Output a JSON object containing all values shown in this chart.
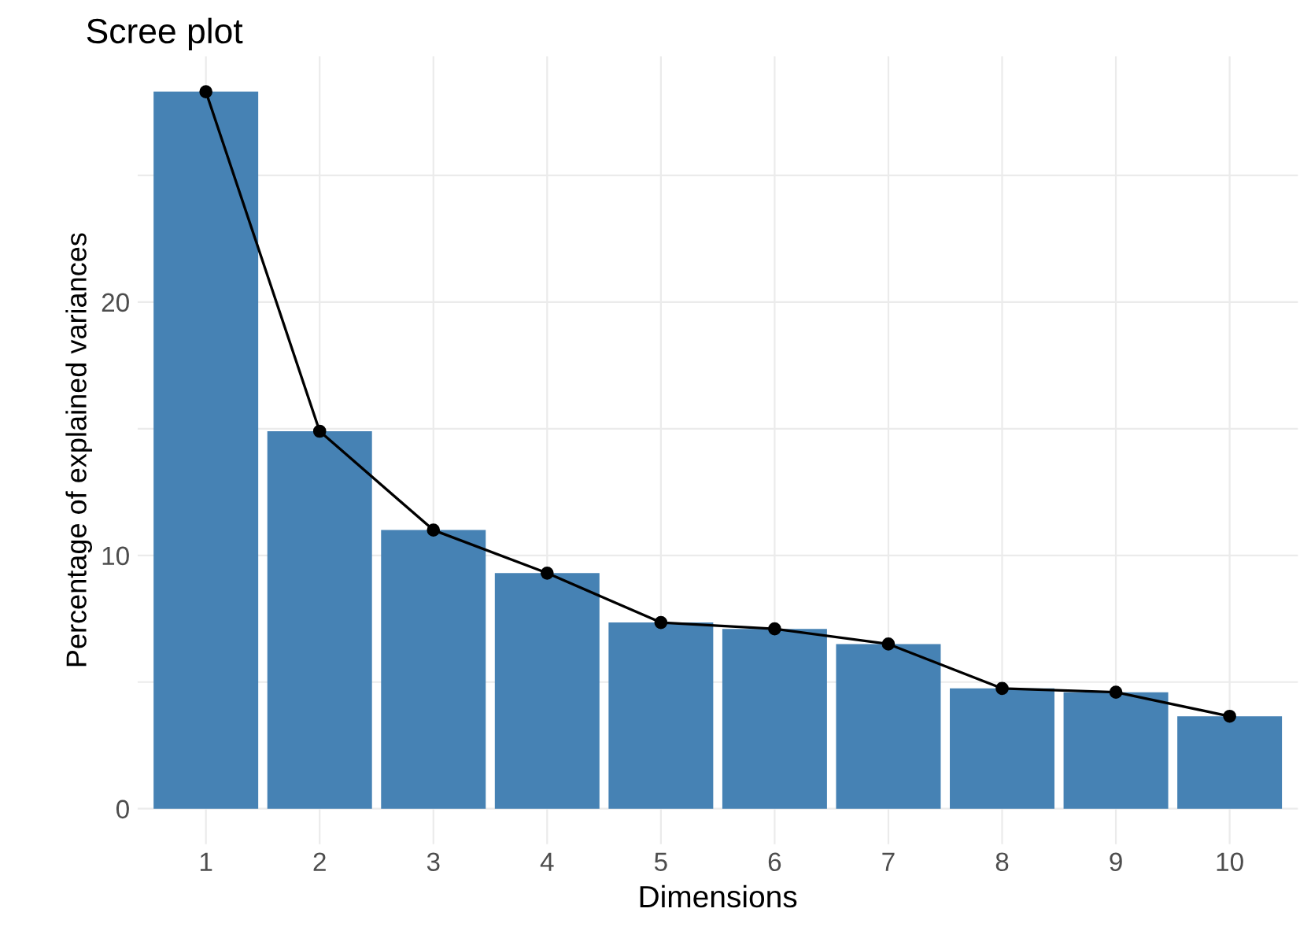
{
  "chart_data": {
    "type": "bar",
    "title": "Scree plot",
    "xlabel": "Dimensions",
    "ylabel": "Percentage of explained variances",
    "categories": [
      "1",
      "2",
      "3",
      "4",
      "5",
      "6",
      "7",
      "8",
      "9",
      "10"
    ],
    "series": [
      {
        "color": "#4682b4",
        "values": [
          28.3,
          14.9,
          11.0,
          9.3,
          7.35,
          7.1,
          6.5,
          4.75,
          4.6,
          3.65
        ]
      },
      {
        "type": "line",
        "color": "#000000",
        "marker": "circle",
        "values": [
          28.3,
          14.9,
          11.0,
          9.3,
          7.35,
          7.1,
          6.5,
          4.75,
          4.6,
          3.65
        ]
      }
    ],
    "ylim": [
      -1.4,
      29.7
    ],
    "yticks": [
      0,
      {
        "value": 5,
        "label": null
      },
      10,
      {
        "value": 15,
        "label": null
      },
      20,
      {
        "value": 25,
        "label": null
      }
    ],
    "grid": true
  }
}
